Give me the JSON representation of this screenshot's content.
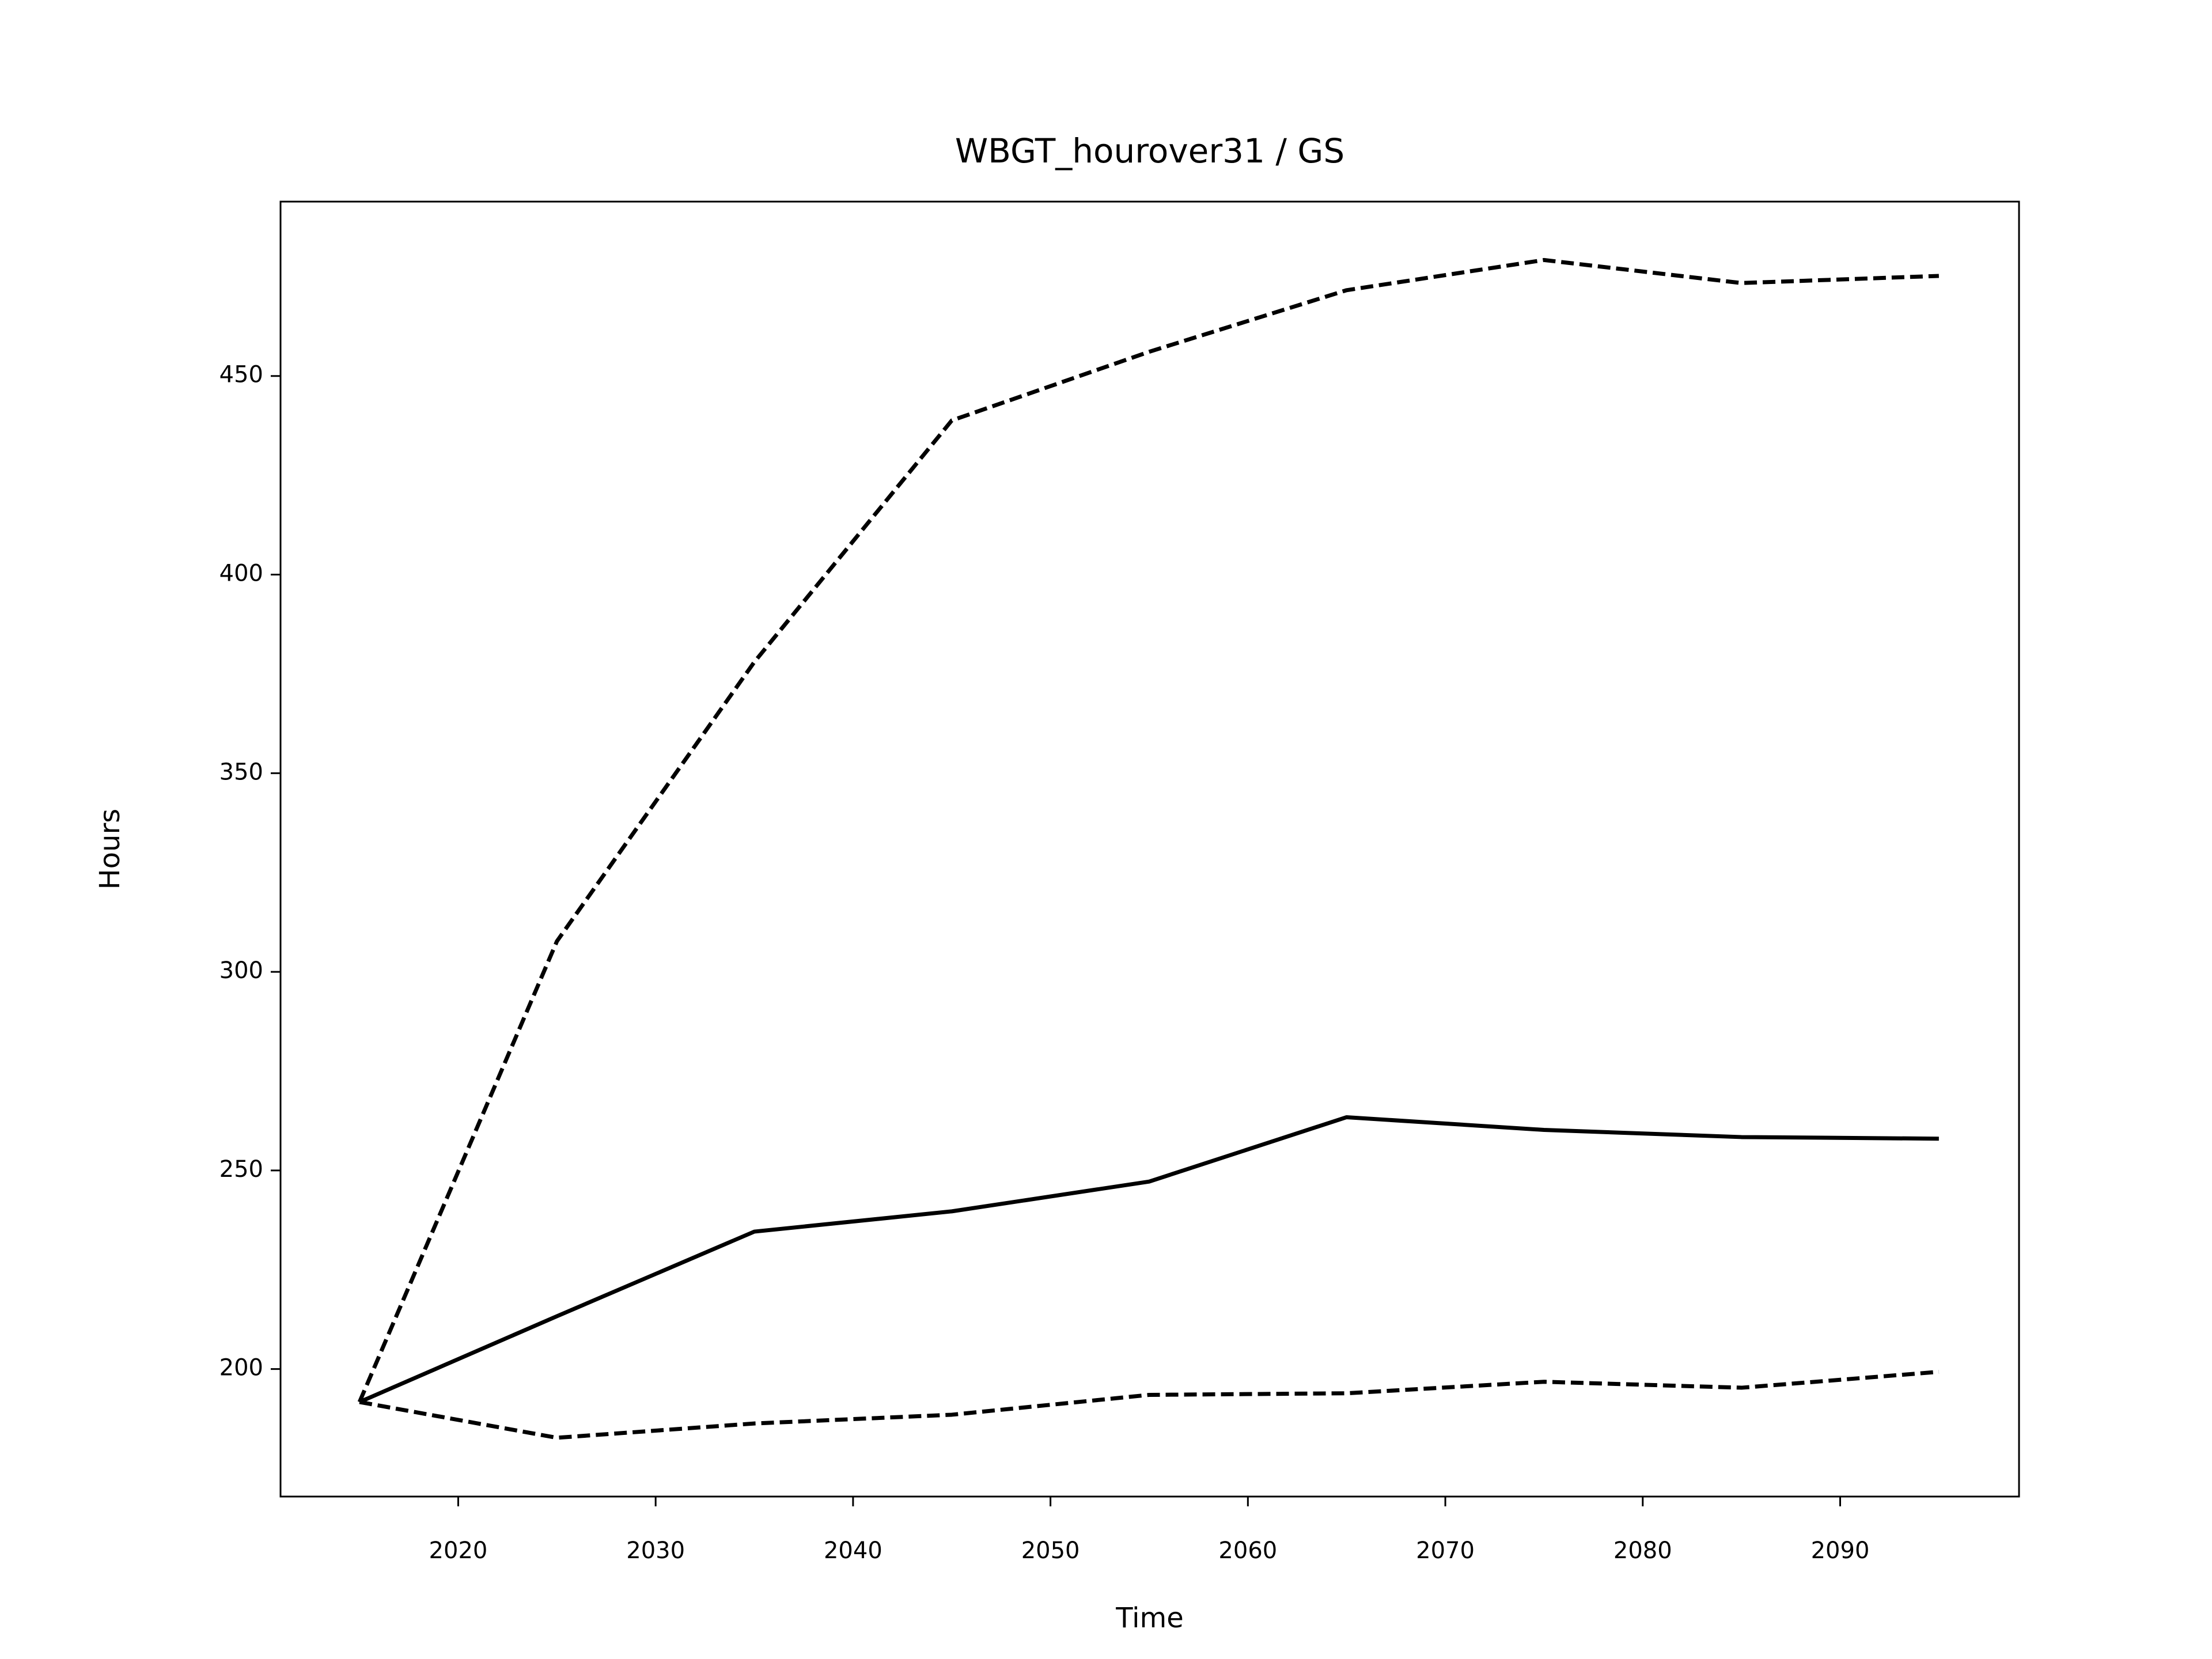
{
  "chart_data": {
    "type": "line",
    "title": "WBGT_hourover31 / GS",
    "x_label": "Time",
    "y_label": "Hours",
    "x": [
      2015,
      2025,
      2035,
      2045,
      2055,
      2065,
      2075,
      2085,
      2095
    ],
    "series": [
      {
        "color": "#000000",
        "style": "solid",
        "values": [
          191.7,
          213.3,
          234.6,
          239.7,
          247.2,
          263.4,
          260.2,
          258.4,
          258.0
        ]
      },
      {
        "color": "#000000",
        "style": "dashed",
        "values": [
          191.7,
          307.7,
          378.0,
          438.8,
          456.1,
          471.6,
          479.2,
          473.4,
          475.2
        ]
      },
      {
        "color": "#000000",
        "style": "dashed",
        "values": [
          191.7,
          182.7,
          186.3,
          188.5,
          193.5,
          193.9,
          196.8,
          195.3,
          199.3
        ]
      }
    ],
    "xlim": [
      2011,
      2099.06
    ],
    "xticks": [
      2020,
      2030,
      2040,
      2050,
      2060,
      2070,
      2080,
      2090
    ],
    "ylim": [
      167.9,
      493.9
    ],
    "yticks": [
      200,
      250,
      300,
      350,
      400,
      450
    ],
    "grid": false
  }
}
